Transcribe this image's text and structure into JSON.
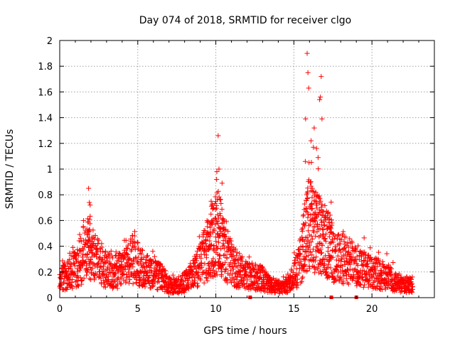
{
  "chart_data": {
    "type": "scatter",
    "title": "Day 074 of 2018, SRMTID for receiver clgo",
    "xlabel": "GPS time / hours",
    "ylabel": "SRMTID / TECUs",
    "xlim": [
      0,
      24
    ],
    "ylim": [
      0,
      2
    ],
    "xticks": [
      0,
      5,
      10,
      15,
      20
    ],
    "xtick_labels": [
      "0",
      "5",
      "10",
      "15",
      "20"
    ],
    "yticks": [
      0,
      0.2,
      0.4,
      0.6,
      0.8,
      1,
      1.2,
      1.4,
      1.6,
      1.8,
      2
    ],
    "ytick_labels": [
      "0",
      "0.2",
      "0.4",
      "0.6",
      "0.8",
      "1",
      "1.2",
      "1.4",
      "1.6",
      "1.8",
      "2"
    ],
    "grid": true,
    "marker": "+",
    "color": "#ff0000",
    "envelope": {
      "x": [
        0,
        0.5,
        1,
        1.5,
        1.9,
        2.3,
        3,
        3.5,
        4,
        4.5,
        4.8,
        5.2,
        5.6,
        6,
        6.5,
        7,
        7.5,
        8,
        8.5,
        9,
        9.5,
        9.8,
        10.2,
        10.5,
        10.8,
        11.2,
        11.6,
        12,
        12.5,
        13,
        13.5,
        14,
        14.5,
        14.9,
        15.3,
        15.6,
        15.9,
        16.2,
        16.5,
        16.8,
        17.2,
        17.6,
        18,
        18.5,
        19,
        19.5,
        20,
        20.5,
        21,
        21.5,
        22,
        22.6
      ],
      "y": [
        0.15,
        0.18,
        0.22,
        0.3,
        0.4,
        0.3,
        0.22,
        0.2,
        0.22,
        0.28,
        0.32,
        0.22,
        0.2,
        0.18,
        0.16,
        0.1,
        0.09,
        0.12,
        0.18,
        0.26,
        0.38,
        0.45,
        0.52,
        0.38,
        0.3,
        0.24,
        0.2,
        0.17,
        0.16,
        0.15,
        0.1,
        0.08,
        0.1,
        0.14,
        0.24,
        0.4,
        0.6,
        0.55,
        0.5,
        0.45,
        0.42,
        0.32,
        0.3,
        0.28,
        0.26,
        0.22,
        0.2,
        0.18,
        0.16,
        0.12,
        0.1,
        0.1
      ]
    },
    "peaks": {
      "x": [
        1.85,
        1.9,
        1.95,
        10.15,
        10.2,
        10.05,
        10.4,
        9.7,
        15.85,
        15.9,
        15.95,
        16.75,
        16.65,
        16.7,
        16.8,
        16.3,
        16.1,
        16.25,
        16.45,
        16.55,
        15.75
      ],
      "y": [
        0.85,
        0.74,
        0.72,
        1.26,
        1.0,
        0.92,
        0.89,
        0.75,
        1.9,
        1.75,
        1.63,
        1.72,
        1.54,
        1.56,
        1.39,
        1.32,
        1.22,
        1.17,
        1.16,
        1.09,
        1.39
      ]
    },
    "markers_on_axis": {
      "x": [
        12.2,
        17.4,
        19.0
      ],
      "y": [
        0,
        0,
        0
      ]
    }
  }
}
